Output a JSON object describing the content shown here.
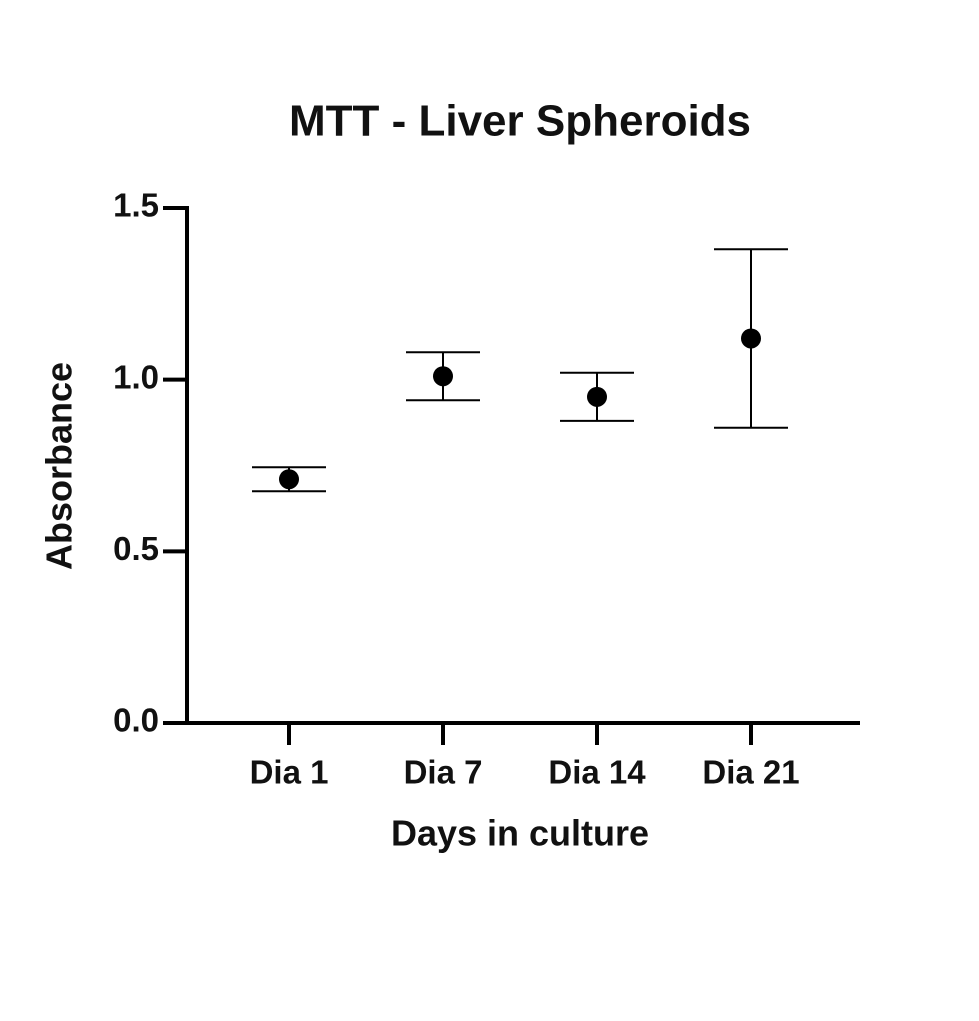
{
  "chart_data": {
    "type": "scatter",
    "title": "MTT - Liver Spheroids",
    "x_label": "Days in culture",
    "y_label": "Absorbance",
    "categories": [
      "Dia 1",
      "Dia 7",
      "Dia 14",
      "Dia 21"
    ],
    "values": [
      0.71,
      1.01,
      0.95,
      1.12
    ],
    "errors": [
      0.035,
      0.07,
      0.07,
      0.26
    ],
    "color": "#000000",
    "ylim": [
      0,
      1.5
    ],
    "yticks": [
      {
        "value": 0,
        "label": "0.0"
      },
      0.5,
      {
        "value": 1,
        "label": "1.0"
      },
      1.5
    ]
  }
}
